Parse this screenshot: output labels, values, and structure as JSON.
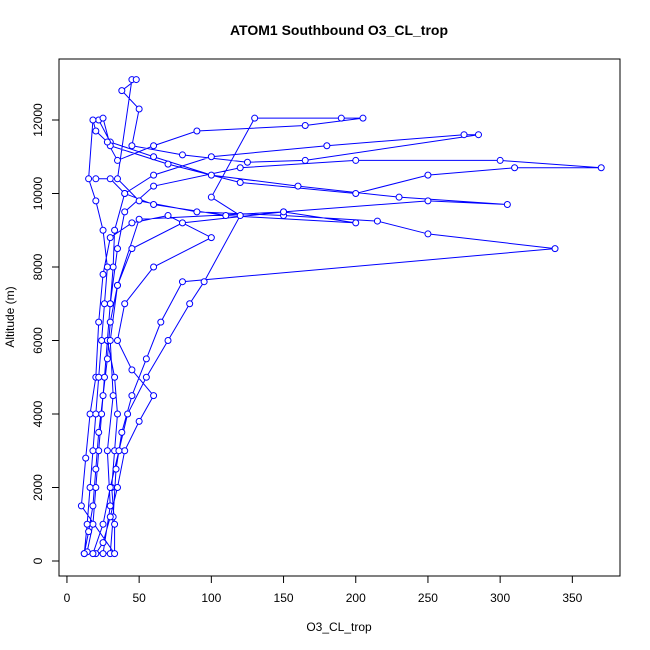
{
  "chart_data": {
    "type": "line",
    "markers": true,
    "title": "ATOM1 Southbound O3_CL_trop",
    "x_label": "O3_CL_trop",
    "y_label": "Altitude (m)",
    "color": "#0000ff",
    "xlim": [
      -5.5,
      383
    ],
    "ylim": [
      -408,
      13660
    ],
    "xticks": [
      0,
      50,
      100,
      150,
      200,
      250,
      300,
      350
    ],
    "yticks": [
      0,
      2000,
      4000,
      6000,
      8000,
      10000,
      12000
    ],
    "x": [
      12,
      15,
      18,
      20,
      22,
      25,
      28,
      30,
      35,
      45,
      80,
      150,
      250,
      305,
      230,
      160,
      100,
      60,
      30,
      22,
      25,
      30,
      70,
      120,
      200,
      250,
      310,
      370,
      300,
      200,
      120,
      60,
      40,
      35,
      30,
      28,
      26,
      24,
      22,
      20,
      18,
      14,
      30,
      32,
      34,
      38,
      45,
      55,
      65,
      80,
      338,
      250,
      215,
      150,
      90,
      50,
      35,
      45,
      48,
      38,
      50,
      45,
      80,
      125,
      165,
      285,
      275,
      180,
      100,
      60,
      40,
      33,
      32,
      30,
      28,
      33,
      35,
      33,
      31,
      33,
      33,
      10,
      13,
      16,
      20,
      22,
      25,
      30,
      45,
      70,
      100,
      60,
      40,
      35,
      45,
      60,
      50,
      40,
      35,
      30,
      25,
      20,
      18,
      25,
      30,
      36,
      42,
      55,
      70,
      85,
      95,
      120,
      100,
      130,
      190,
      205,
      165,
      90,
      60,
      35,
      28,
      20,
      18,
      15,
      20,
      25,
      28,
      26,
      24,
      22,
      20,
      18,
      16,
      14,
      12,
      25,
      30,
      28,
      32,
      30,
      35,
      50,
      150,
      200,
      110,
      60,
      40,
      30,
      20
    ],
    "values": [
      200,
      800,
      1500,
      2500,
      3500,
      4500,
      5500,
      6500,
      7500,
      8500,
      9200,
      9500,
      9800,
      9700,
      9900,
      10200,
      10500,
      11000,
      11400,
      12000,
      12050,
      11300,
      10800,
      10300,
      10000,
      10500,
      10700,
      10700,
      10900,
      10900,
      10700,
      10200,
      9500,
      8500,
      7000,
      6000,
      5000,
      4000,
      3000,
      2000,
      1000,
      250,
      200,
      1200,
      2500,
      3500,
      4500,
      5500,
      6500,
      7600,
      8500,
      8900,
      9250,
      9400,
      9500,
      9800,
      10400,
      13100,
      13100,
      12800,
      12300,
      11300,
      11050,
      10850,
      10900,
      11600,
      11600,
      11300,
      11000,
      10500,
      10000,
      9000,
      8000,
      7000,
      6000,
      5000,
      4000,
      3000,
      2000,
      1000,
      200,
      1500,
      2800,
      4000,
      5000,
      6500,
      7800,
      8800,
      9200,
      9400,
      8800,
      8000,
      7000,
      6000,
      5200,
      4500,
      3800,
      3000,
      2000,
      1200,
      500,
      200,
      200,
      1000,
      2000,
      3000,
      4000,
      5000,
      6000,
      7000,
      7600,
      9400,
      9900,
      12050,
      12050,
      12050,
      11850,
      11700,
      11300,
      10900,
      11400,
      11700,
      12000,
      10400,
      9800,
      9000,
      8000,
      7000,
      6000,
      5000,
      4000,
      3000,
      2000,
      1000,
      200,
      200,
      1500,
      3000,
      4500,
      6000,
      7500,
      9300,
      9500,
      9200,
      9400,
      9700,
      10000,
      10400,
      10400
    ]
  }
}
